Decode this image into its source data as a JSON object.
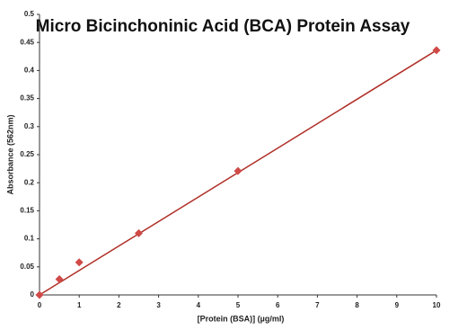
{
  "chart_data": {
    "type": "scatter",
    "title": "Micro Bicinchoninic Acid (BCA) Protein Assay",
    "x_label": "[Protein (BSA)] (µg/ml)",
    "y_label": "Absorbance (562nm)",
    "x": [
      0,
      0.5,
      1,
      2.5,
      5,
      10
    ],
    "values": [
      0,
      0.028,
      0.058,
      0.11,
      0.221,
      0.436
    ],
    "color": "#d04a48",
    "trendline": {
      "x": [
        0,
        10
      ],
      "values": [
        0,
        0.436
      ],
      "color": "#b03028"
    },
    "xlim": [
      0,
      10
    ],
    "xticks": [
      0,
      1,
      2,
      3,
      4,
      5,
      6,
      7,
      8,
      9,
      10
    ],
    "ylim": [
      0,
      0.5
    ],
    "yticks": [
      0,
      0.05,
      0.1,
      0.15,
      0.2,
      0.25,
      0.3,
      0.35,
      0.4,
      0.45,
      0.5
    ],
    "grid": false
  }
}
